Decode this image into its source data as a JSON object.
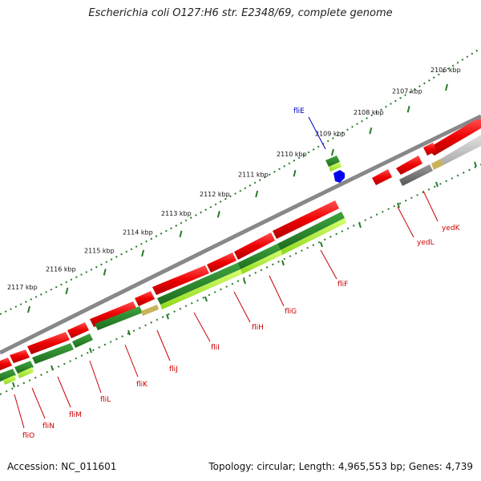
{
  "title": "Escherichia coli O127:H6 str. E2348/69, complete genome",
  "footer": {
    "accession": "Accession: NC_011601",
    "summary": "Topology: circular; Length: 4,965,553 bp; Genes: 4,739"
  },
  "kbp_ticks": [
    {
      "label": "2106 kbp",
      "kb": 2106
    },
    {
      "label": "2107 kbp",
      "kb": 2107
    },
    {
      "label": "2108 kbp",
      "kb": 2108
    },
    {
      "label": "2109 kbp",
      "kb": 2109
    },
    {
      "label": "2110 kbp",
      "kb": 2110
    },
    {
      "label": "2111 kbp",
      "kb": 2111
    },
    {
      "label": "2112 kbp",
      "kb": 2112
    },
    {
      "label": "2113 kbp",
      "kb": 2113
    },
    {
      "label": "2114 kbp",
      "kb": 2114
    },
    {
      "label": "2115 kbp",
      "kb": 2115
    },
    {
      "label": "2116 kbp",
      "kb": 2116
    },
    {
      "label": "2117 kbp",
      "kb": 2117
    }
  ],
  "gene_labels": [
    {
      "name": "fliE",
      "color": "#0000cc"
    },
    {
      "name": "yedK",
      "color": "#cc0000"
    },
    {
      "name": "yedL",
      "color": "#cc0000"
    },
    {
      "name": "fliF",
      "color": "#cc0000"
    },
    {
      "name": "fliG",
      "color": "#cc0000"
    },
    {
      "name": "fliH",
      "color": "#cc0000"
    },
    {
      "name": "fliI",
      "color": "#cc0000"
    },
    {
      "name": "fliJ",
      "color": "#cc0000"
    },
    {
      "name": "fliK",
      "color": "#cc0000"
    },
    {
      "name": "fliL",
      "color": "#cc0000"
    },
    {
      "name": "fliM",
      "color": "#cc0000"
    },
    {
      "name": "fliN",
      "color": "#cc0000"
    },
    {
      "name": "fliO",
      "color": "#cc0000"
    }
  ],
  "colors": {
    "cds_forward": "#ee0000",
    "cds_reverse": "#0000ee",
    "gene_feature": "#2e8b2e",
    "gene_feature_light": "#adff2f",
    "backbone": "#888888",
    "tick": "#2a7a2a",
    "pseudo": "#777777"
  }
}
